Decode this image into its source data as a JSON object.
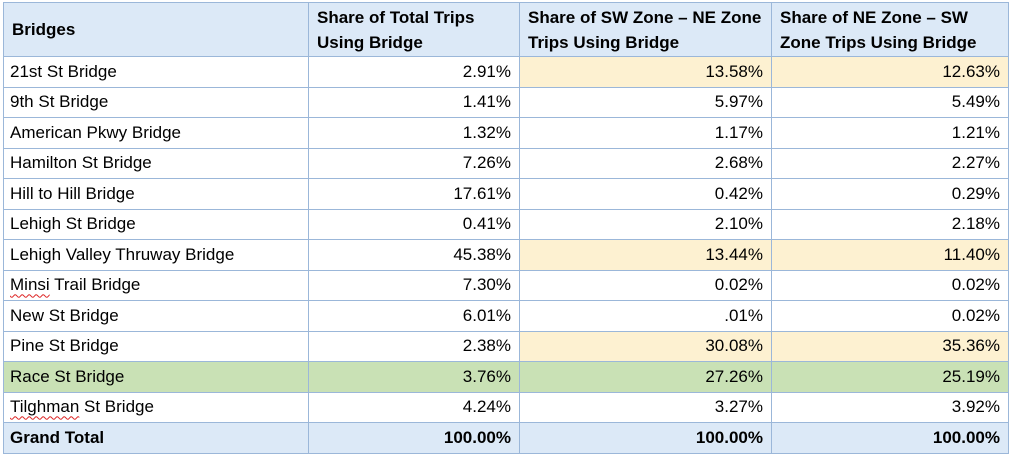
{
  "headers": [
    "Bridges",
    "Share of Total Trips Using Bridge",
    "Share of SW Zone – NE Zone Trips Using Bridge",
    "Share of NE Zone – SW Zone Trips Using Bridge"
  ],
  "rows": [
    {
      "name": "21st St Bridge",
      "total": "2.91%",
      "sw_ne": "13.58%",
      "ne_sw": "12.63%",
      "highlight": "yellow"
    },
    {
      "name": "9th St Bridge",
      "total": "1.41%",
      "sw_ne": "5.97%",
      "ne_sw": "5.49%",
      "highlight": ""
    },
    {
      "name": "American Pkwy Bridge",
      "total": "1.32%",
      "sw_ne": "1.17%",
      "ne_sw": "1.21%",
      "highlight": ""
    },
    {
      "name": "Hamilton St Bridge",
      "total": "7.26%",
      "sw_ne": "2.68%",
      "ne_sw": "2.27%",
      "highlight": ""
    },
    {
      "name": "Hill to Hill Bridge",
      "total": "17.61%",
      "sw_ne": "0.42%",
      "ne_sw": "0.29%",
      "highlight": ""
    },
    {
      "name": "Lehigh St Bridge",
      "total": "0.41%",
      "sw_ne": "2.10%",
      "ne_sw": "2.18%",
      "highlight": ""
    },
    {
      "name": "Lehigh Valley Thruway Bridge",
      "total": "45.38%",
      "sw_ne": "13.44%",
      "ne_sw": "11.40%",
      "highlight": "yellow"
    },
    {
      "name": "Minsi Trail Bridge",
      "total": "7.30%",
      "sw_ne": "0.02%",
      "ne_sw": "0.02%",
      "highlight": ""
    },
    {
      "name": "New St Bridge",
      "total": "6.01%",
      "sw_ne": ".01%",
      "ne_sw": "0.02%",
      "highlight": ""
    },
    {
      "name": "Pine St Bridge",
      "total": "2.38%",
      "sw_ne": "30.08%",
      "ne_sw": "35.36%",
      "highlight": "yellow"
    },
    {
      "name": "Race St Bridge",
      "total": "3.76%",
      "sw_ne": "27.26%",
      "ne_sw": "25.19%",
      "highlight": "green"
    },
    {
      "name": "Tilghman St Bridge",
      "total": "4.24%",
      "sw_ne": "3.27%",
      "ne_sw": "3.92%",
      "highlight": ""
    }
  ],
  "grand_total": {
    "name": "Grand Total",
    "total": "100.00%",
    "sw_ne": "100.00%",
    "ne_sw": "100.00%"
  },
  "colors": {
    "header_bg": "#dce9f7",
    "border": "#9bb7d9",
    "highlight_yellow": "#fdf1d1",
    "highlight_green": "#c9e1b5"
  }
}
